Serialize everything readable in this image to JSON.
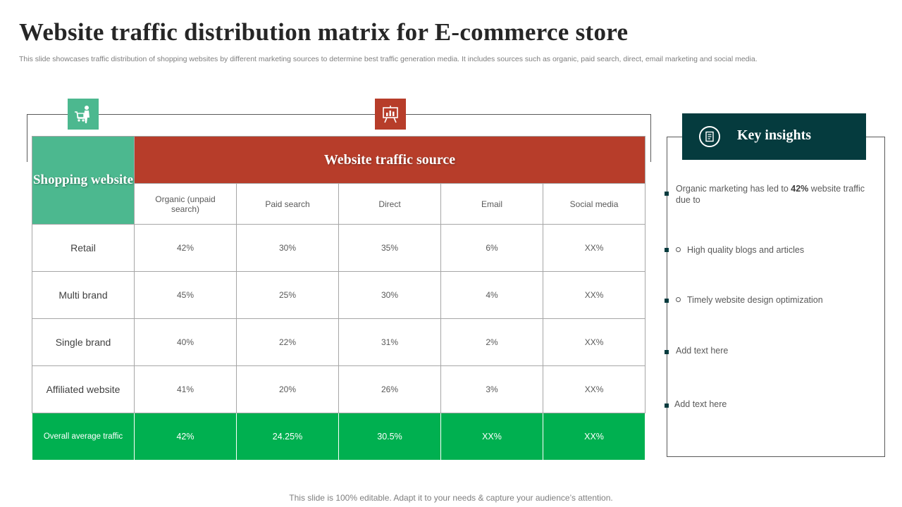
{
  "title": "Website traffic distribution matrix for E-commerce store",
  "subtitle": "This slide showcases traffic distribution of shopping websites by different marketing sources to determine best traffic generation media. It includes sources such as organic, paid search, direct, email marketing and social media.",
  "table": {
    "corner_header": "Shopping website",
    "group_header": "Website traffic source",
    "columns": [
      "Organic (unpaid search)",
      "Paid search",
      "Direct",
      "Email",
      "Social media"
    ],
    "rows": [
      {
        "label": "Retail",
        "values": [
          "42%",
          "30%",
          "35%",
          "6%",
          "XX%"
        ]
      },
      {
        "label": "Multi brand",
        "values": [
          "45%",
          "25%",
          "30%",
          "4%",
          "XX%"
        ]
      },
      {
        "label": "Single brand",
        "values": [
          "40%",
          "22%",
          "31%",
          "2%",
          "XX%"
        ]
      },
      {
        "label": "Affiliated website",
        "values": [
          "41%",
          "20%",
          "26%",
          "3%",
          "XX%"
        ]
      }
    ],
    "average": {
      "label": "Overall average traffic",
      "values": [
        "42%",
        "24.25%",
        "30.5%",
        "XX%",
        "XX%"
      ]
    }
  },
  "insights": {
    "title": "Key insights",
    "main_prefix": "Organic marketing has led to ",
    "main_bold": "42%",
    "main_suffix": " website traffic due to",
    "sub_items": [
      "High quality blogs and articles",
      "Timely website design optimization"
    ],
    "extra_items": [
      "Add text here",
      "Add text here"
    ]
  },
  "icons": {
    "shopping": "shopping-cart-person-icon",
    "traffic": "presentation-board-icon",
    "insights": "document-icon"
  },
  "colors": {
    "green": "#4cb88f",
    "red": "#b73d2a",
    "average_green": "#00b050",
    "dark_teal": "#053b3e"
  },
  "footer": "This slide is 100% editable. Adapt it to your needs & capture your audience’s attention."
}
